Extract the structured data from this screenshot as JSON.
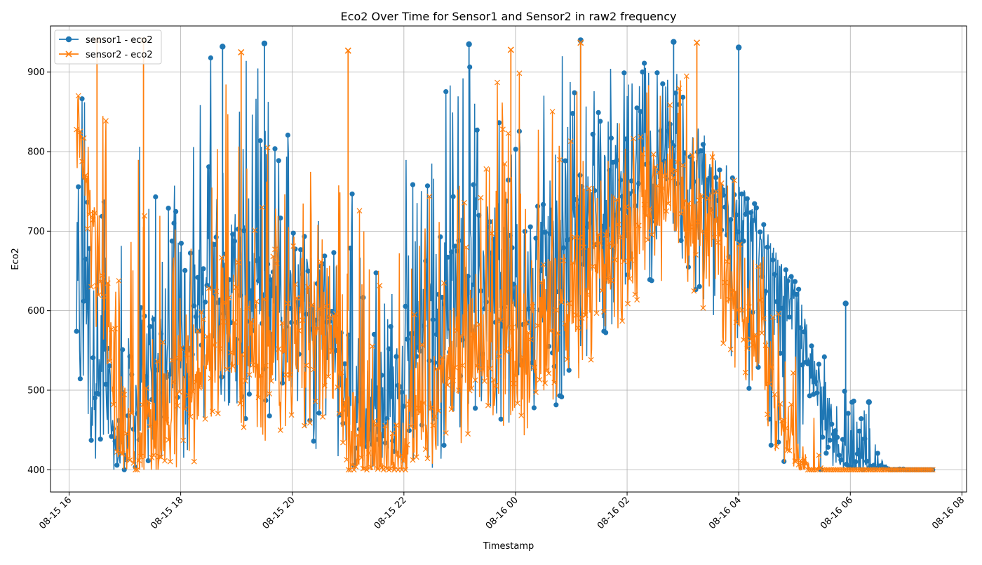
{
  "chart_data": {
    "type": "line",
    "title": "Eco2 Over Time for Sensor1 and Sensor2 in raw2 frequency",
    "xlabel": "Timestamp",
    "ylabel": "Eco2",
    "x_range": [
      "2024-08-15T15:40",
      "2024-08-16T08:05"
    ],
    "ylim": [
      372,
      958
    ],
    "x_ticks": [
      {
        "t": "2024-08-15T16:00",
        "label": "08-15 16"
      },
      {
        "t": "2024-08-15T18:00",
        "label": "08-15 18"
      },
      {
        "t": "2024-08-15T20:00",
        "label": "08-15 20"
      },
      {
        "t": "2024-08-15T22:00",
        "label": "08-15 22"
      },
      {
        "t": "2024-08-16T00:00",
        "label": "08-16 00"
      },
      {
        "t": "2024-08-16T02:00",
        "label": "08-16 02"
      },
      {
        "t": "2024-08-16T04:00",
        "label": "08-16 04"
      },
      {
        "t": "2024-08-16T06:00",
        "label": "08-16 06"
      },
      {
        "t": "2024-08-16T08:00",
        "label": "08-16 08"
      }
    ],
    "y_ticks": [
      {
        "v": 400,
        "label": "400"
      },
      {
        "v": 500,
        "label": "500"
      },
      {
        "v": 600,
        "label": "600"
      },
      {
        "v": 700,
        "label": "700"
      },
      {
        "v": 800,
        "label": "800"
      },
      {
        "v": 900,
        "label": "900"
      }
    ],
    "grid": true,
    "legend_position": "top-left",
    "series": [
      {
        "name": "sensor1 - eco2",
        "color": "#1f77b4",
        "marker": "circle",
        "x": [
          "2024-08-15T16:08",
          "2024-08-15T16:15",
          "2024-08-15T16:25",
          "2024-08-15T16:35",
          "2024-08-15T16:45",
          "2024-08-15T16:55",
          "2024-08-15T17:05",
          "2024-08-15T17:15",
          "2024-08-15T17:30",
          "2024-08-15T17:45",
          "2024-08-15T18:00",
          "2024-08-15T18:15",
          "2024-08-15T18:30",
          "2024-08-15T18:45",
          "2024-08-15T19:00",
          "2024-08-15T19:15",
          "2024-08-15T19:30",
          "2024-08-15T19:45",
          "2024-08-15T20:00",
          "2024-08-15T20:15",
          "2024-08-15T20:30",
          "2024-08-15T20:45",
          "2024-08-15T21:00",
          "2024-08-15T21:15",
          "2024-08-15T21:30",
          "2024-08-15T21:45",
          "2024-08-15T22:00",
          "2024-08-15T22:15",
          "2024-08-15T22:30",
          "2024-08-15T22:45",
          "2024-08-15T23:00",
          "2024-08-15T23:15",
          "2024-08-15T23:30",
          "2024-08-15T23:45",
          "2024-08-16T00:00",
          "2024-08-16T00:15",
          "2024-08-16T00:30",
          "2024-08-16T00:45",
          "2024-08-16T01:00",
          "2024-08-16T01:15",
          "2024-08-16T01:30",
          "2024-08-16T01:45",
          "2024-08-16T02:00",
          "2024-08-16T02:15",
          "2024-08-16T02:30",
          "2024-08-16T02:45",
          "2024-08-16T03:00",
          "2024-08-16T03:15",
          "2024-08-16T03:30",
          "2024-08-16T03:45",
          "2024-08-16T04:00",
          "2024-08-16T04:15",
          "2024-08-16T04:30",
          "2024-08-16T04:45",
          "2024-08-16T05:00",
          "2024-08-16T05:15",
          "2024-08-16T05:30",
          "2024-08-16T05:45",
          "2024-08-16T06:00",
          "2024-08-16T06:15",
          "2024-08-16T06:30",
          "2024-08-16T06:45",
          "2024-08-16T07:00",
          "2024-08-16T07:15",
          "2024-08-16T07:30"
        ],
        "y": [
          720,
          640,
          560,
          520,
          470,
          430,
          480,
          520,
          540,
          560,
          590,
          610,
          640,
          620,
          650,
          640,
          630,
          640,
          650,
          640,
          620,
          560,
          520,
          480,
          470,
          480,
          520,
          560,
          600,
          620,
          640,
          650,
          660,
          650,
          640,
          650,
          660,
          680,
          700,
          720,
          740,
          760,
          770,
          780,
          790,
          800,
          790,
          780,
          760,
          740,
          720,
          700,
          680,
          640,
          600,
          540,
          480,
          430,
          410,
          400,
          405,
          400,
          400,
          400,
          400
        ],
        "y_min": [
          510,
          450,
          420,
          400,
          400,
          400,
          400,
          400,
          400,
          400,
          400,
          420,
          480,
          480,
          480,
          450,
          460,
          450,
          460,
          440,
          420,
          420,
          400,
          400,
          400,
          400,
          400,
          400,
          400,
          420,
          450,
          460,
          470,
          460,
          450,
          460,
          470,
          480,
          510,
          540,
          560,
          580,
          600,
          620,
          640,
          640,
          630,
          620,
          600,
          560,
          520,
          480,
          430,
          400,
          400,
          400,
          400,
          400,
          400,
          400,
          400,
          400,
          400,
          400,
          400
        ],
        "y_max": [
          940,
          900,
          880,
          850,
          820,
          790,
          760,
          830,
          780,
          810,
          800,
          920,
          930,
          920,
          880,
          930,
          900,
          840,
          860,
          830,
          800,
          700,
          780,
          700,
          680,
          700,
          810,
          780,
          830,
          890,
          940,
          900,
          860,
          860,
          850,
          830,
          900,
          940,
          890,
          880,
          920,
          930,
          900,
          930,
          940,
          930,
          880,
          840,
          830,
          800,
          760,
          740,
          700,
          660,
          640,
          600,
          560,
          520,
          500,
          480,
          420,
          405,
          400,
          400,
          400
        ],
        "spikes": [
          {
            "t": "2024-08-15T18:45",
            "v": 932
          },
          {
            "t": "2024-08-15T19:30",
            "v": 936
          },
          {
            "t": "2024-08-15T23:10",
            "v": 935
          },
          {
            "t": "2024-08-16T01:10",
            "v": 940
          },
          {
            "t": "2024-08-16T02:50",
            "v": 938
          },
          {
            "t": "2024-08-16T04:00",
            "v": 931
          },
          {
            "t": "2024-08-16T05:55",
            "v": 609
          },
          {
            "t": "2024-08-16T06:20",
            "v": 485
          }
        ]
      },
      {
        "name": "sensor2 - eco2",
        "color": "#ff7f0e",
        "marker": "x",
        "x": [
          "2024-08-15T16:08",
          "2024-08-15T16:15",
          "2024-08-15T16:25",
          "2024-08-15T16:35",
          "2024-08-15T16:45",
          "2024-08-15T16:55",
          "2024-08-15T17:05",
          "2024-08-15T17:15",
          "2024-08-15T17:30",
          "2024-08-15T17:45",
          "2024-08-15T18:00",
          "2024-08-15T18:15",
          "2024-08-15T18:30",
          "2024-08-15T18:45",
          "2024-08-15T19:00",
          "2024-08-15T19:15",
          "2024-08-15T19:30",
          "2024-08-15T19:45",
          "2024-08-15T20:00",
          "2024-08-15T20:15",
          "2024-08-15T20:30",
          "2024-08-15T20:45",
          "2024-08-15T21:00",
          "2024-08-15T21:15",
          "2024-08-15T21:30",
          "2024-08-15T21:45",
          "2024-08-15T22:00",
          "2024-08-15T22:15",
          "2024-08-15T22:30",
          "2024-08-15T22:45",
          "2024-08-15T23:00",
          "2024-08-15T23:15",
          "2024-08-15T23:30",
          "2024-08-15T23:45",
          "2024-08-16T00:00",
          "2024-08-16T00:15",
          "2024-08-16T00:30",
          "2024-08-16T00:45",
          "2024-08-16T01:00",
          "2024-08-16T01:15",
          "2024-08-16T01:30",
          "2024-08-16T01:45",
          "2024-08-16T02:00",
          "2024-08-16T02:15",
          "2024-08-16T02:30",
          "2024-08-16T02:45",
          "2024-08-16T03:00",
          "2024-08-16T03:15",
          "2024-08-16T03:30",
          "2024-08-16T03:45",
          "2024-08-16T04:00",
          "2024-08-16T04:15",
          "2024-08-16T04:30",
          "2024-08-16T04:45",
          "2024-08-16T05:00",
          "2024-08-16T05:15",
          "2024-08-16T05:30",
          "2024-08-16T05:45",
          "2024-08-16T06:00",
          "2024-08-16T06:15",
          "2024-08-16T06:30",
          "2024-08-16T06:45",
          "2024-08-16T07:00",
          "2024-08-16T07:15",
          "2024-08-16T07:30"
        ],
        "y": [
          860,
          800,
          720,
          640,
          560,
          480,
          430,
          420,
          440,
          470,
          500,
          520,
          560,
          600,
          580,
          560,
          550,
          540,
          560,
          580,
          600,
          560,
          440,
          410,
          400,
          410,
          440,
          470,
          500,
          520,
          540,
          560,
          570,
          560,
          550,
          570,
          590,
          610,
          620,
          640,
          660,
          680,
          700,
          720,
          740,
          750,
          740,
          720,
          690,
          660,
          630,
          590,
          540,
          480,
          420,
          400,
          400,
          400,
          400,
          400,
          400,
          400,
          400,
          400,
          400
        ],
        "y_min": [
          760,
          700,
          620,
          520,
          450,
          400,
          400,
          400,
          400,
          400,
          400,
          410,
          440,
          470,
          460,
          440,
          430,
          430,
          440,
          450,
          470,
          430,
          400,
          400,
          400,
          400,
          400,
          400,
          400,
          410,
          430,
          450,
          460,
          440,
          430,
          450,
          470,
          490,
          500,
          520,
          540,
          560,
          590,
          610,
          630,
          640,
          630,
          610,
          580,
          550,
          520,
          480,
          440,
          400,
          400,
          400,
          400,
          400,
          400,
          400,
          400,
          400,
          400,
          400,
          400
        ],
        "y_max": [
          940,
          935,
          920,
          880,
          840,
          800,
          940,
          820,
          700,
          740,
          720,
          840,
          730,
          925,
          860,
          760,
          820,
          760,
          760,
          800,
          720,
          690,
          927,
          700,
          860,
          730,
          680,
          720,
          765,
          760,
          780,
          780,
          860,
          930,
          920,
          860,
          910,
          930,
          925,
          840,
          800,
          820,
          860,
          880,
          905,
          920,
          890,
          937,
          830,
          780,
          850,
          760,
          700,
          640,
          560,
          520,
          400,
          400,
          400,
          400,
          400,
          400,
          400,
          400,
          400
        ],
        "spikes": [
          {
            "t": "2024-08-15T16:30",
            "v": 940
          },
          {
            "t": "2024-08-15T17:20",
            "v": 940
          },
          {
            "t": "2024-08-15T19:05",
            "v": 925
          },
          {
            "t": "2024-08-15T21:00",
            "v": 927
          },
          {
            "t": "2024-08-15T23:55",
            "v": 928
          },
          {
            "t": "2024-08-16T01:10",
            "v": 937
          },
          {
            "t": "2024-08-16T03:15",
            "v": 937
          }
        ]
      }
    ]
  }
}
